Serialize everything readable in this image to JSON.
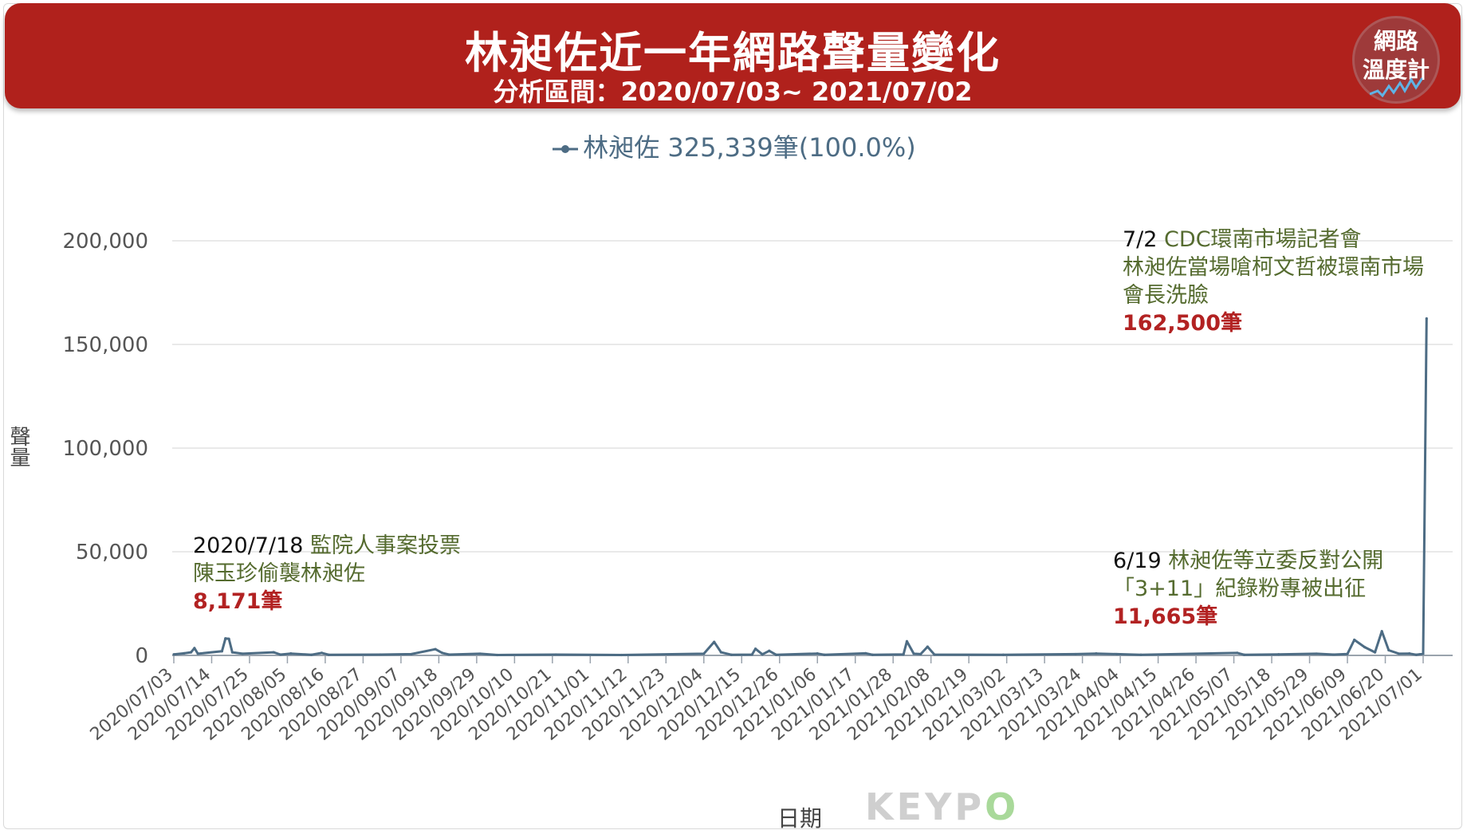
{
  "header": {
    "title": "林昶佐近一年網路聲量變化",
    "subtitle": "分析區間：2020/07/03~ 2021/07/02",
    "badge_line1": "網路",
    "badge_line2": "溫度計"
  },
  "colors": {
    "banner": "#b0211c",
    "series": "#4d6c84",
    "annotation_text": "#556b2f",
    "annotation_count": "#b22222"
  },
  "watermark": {
    "text_a": "KEYP",
    "text_b": "O"
  },
  "annotations": [
    {
      "date": "2020/7/18",
      "line1": "監院人事案投票",
      "line2": "陳玉珍偷襲林昶佐",
      "line3": "",
      "count": "8,171筆"
    },
    {
      "date": "6/19",
      "line1": "林昶佐等立委反對公開",
      "line2": "「3+11」紀錄粉專被出征",
      "line3": "",
      "count": "11,665筆"
    },
    {
      "date": "7/2",
      "line1": "CDC環南市場記者會",
      "line2": "林昶佐當場嗆柯文哲被環南市場",
      "line3": "會長洗臉",
      "count": "162,500筆"
    }
  ],
  "chart_data": {
    "type": "line",
    "legend": {
      "position": "top-center",
      "label": "林昶佐 325,339筆(100.0%)"
    },
    "xlabel": "日期",
    "ylabel": "聲量",
    "ylim": [
      0,
      200000
    ],
    "y_ticks": [
      "0",
      "50,000",
      "100,000",
      "150,000",
      "200,000"
    ],
    "y_tick_values": [
      0,
      50000,
      100000,
      150000,
      200000
    ],
    "grid": true,
    "x_tick_labels": [
      "2020/07/03",
      "2020/07/14",
      "2020/07/25",
      "2020/08/05",
      "2020/08/16",
      "2020/08/27",
      "2020/09/07",
      "2020/09/18",
      "2020/09/29",
      "2020/10/10",
      "2020/10/21",
      "2020/11/01",
      "2020/11/12",
      "2020/11/23",
      "2020/12/04",
      "2020/12/15",
      "2020/12/26",
      "2021/01/06",
      "2021/01/17",
      "2021/01/28",
      "2021/02/08",
      "2021/02/19",
      "2021/03/02",
      "2021/03/13",
      "2021/03/24",
      "2021/04/04",
      "2021/04/15",
      "2021/04/26",
      "2021/05/07",
      "2021/05/18",
      "2021/05/29",
      "2021/06/09",
      "2021/06/20",
      "2021/07/01"
    ],
    "series": [
      {
        "name": "林昶佐",
        "color": "#4d6c84",
        "points": [
          [
            "2020/07/03",
            500
          ],
          [
            "2020/07/06",
            1000
          ],
          [
            "2020/07/08",
            1500
          ],
          [
            "2020/07/09",
            3500
          ],
          [
            "2020/07/10",
            800
          ],
          [
            "2020/07/17",
            2000
          ],
          [
            "2020/07/18",
            8171
          ],
          [
            "2020/07/19",
            8000
          ],
          [
            "2020/07/20",
            1500
          ],
          [
            "2020/07/23",
            800
          ],
          [
            "2020/08/01",
            1500
          ],
          [
            "2020/08/03",
            400
          ],
          [
            "2020/08/06",
            900
          ],
          [
            "2020/08/12",
            300
          ],
          [
            "2020/08/15",
            1200
          ],
          [
            "2020/08/17",
            300
          ],
          [
            "2020/09/01",
            400
          ],
          [
            "2020/09/10",
            600
          ],
          [
            "2020/09/17",
            3000
          ],
          [
            "2020/09/19",
            1200
          ],
          [
            "2020/09/21",
            400
          ],
          [
            "2020/09/30",
            800
          ],
          [
            "2020/10/05",
            200
          ],
          [
            "2020/10/22",
            400
          ],
          [
            "2020/11/10",
            200
          ],
          [
            "2020/12/04",
            800
          ],
          [
            "2020/12/07",
            6500
          ],
          [
            "2020/12/09",
            1500
          ],
          [
            "2020/12/12",
            300
          ],
          [
            "2020/12/18",
            400
          ],
          [
            "2020/12/19",
            3200
          ],
          [
            "2020/12/21",
            500
          ],
          [
            "2020/12/23",
            2200
          ],
          [
            "2020/12/25",
            300
          ],
          [
            "2021/01/06",
            900
          ],
          [
            "2021/01/08",
            300
          ],
          [
            "2021/01/20",
            1000
          ],
          [
            "2021/01/22",
            300
          ],
          [
            "2021/01/31",
            500
          ],
          [
            "2021/02/01",
            6800
          ],
          [
            "2021/02/03",
            800
          ],
          [
            "2021/02/05",
            600
          ],
          [
            "2021/02/07",
            4200
          ],
          [
            "2021/02/09",
            400
          ],
          [
            "2021/03/01",
            300
          ],
          [
            "2021/03/22",
            600
          ],
          [
            "2021/03/28",
            900
          ],
          [
            "2021/04/03",
            600
          ],
          [
            "2021/04/10",
            300
          ],
          [
            "2021/05/08",
            1200
          ],
          [
            "2021/05/10",
            300
          ],
          [
            "2021/05/20",
            500
          ],
          [
            "2021/05/31",
            800
          ],
          [
            "2021/06/05",
            400
          ],
          [
            "2021/06/09",
            700
          ],
          [
            "2021/06/11",
            7500
          ],
          [
            "2021/06/14",
            4000
          ],
          [
            "2021/06/17",
            1500
          ],
          [
            "2021/06/19",
            11665
          ],
          [
            "2021/06/21",
            2500
          ],
          [
            "2021/06/24",
            800
          ],
          [
            "2021/06/27",
            900
          ],
          [
            "2021/06/29",
            300
          ],
          [
            "2021/07/01",
            800
          ],
          [
            "2021/07/02",
            162500
          ]
        ]
      }
    ],
    "annotations": [
      {
        "x": "2020/07/18",
        "y": 8171
      },
      {
        "x": "2021/06/19",
        "y": 11665
      },
      {
        "x": "2021/07/02",
        "y": 162500
      }
    ]
  }
}
